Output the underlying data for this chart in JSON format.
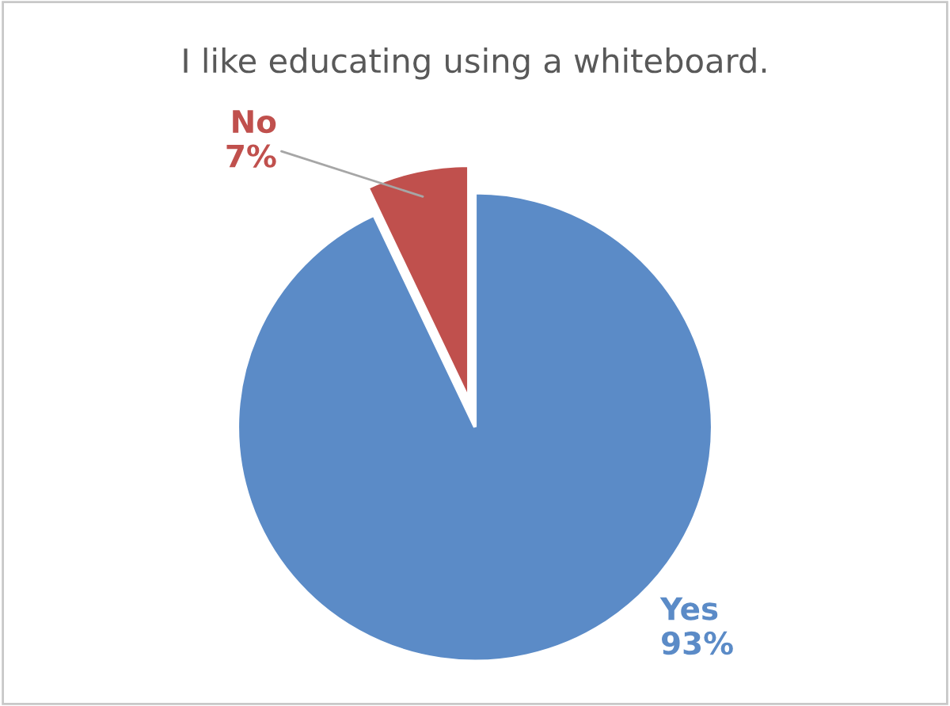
{
  "chart_data": {
    "type": "pie",
    "title": "I like educating using a whiteboard.",
    "categories": [
      "Yes",
      "No"
    ],
    "values": [
      93,
      7
    ],
    "value_labels": [
      "93%",
      "7%"
    ],
    "colors": [
      "#5b8bc7",
      "#c0504d"
    ],
    "legend": false
  }
}
